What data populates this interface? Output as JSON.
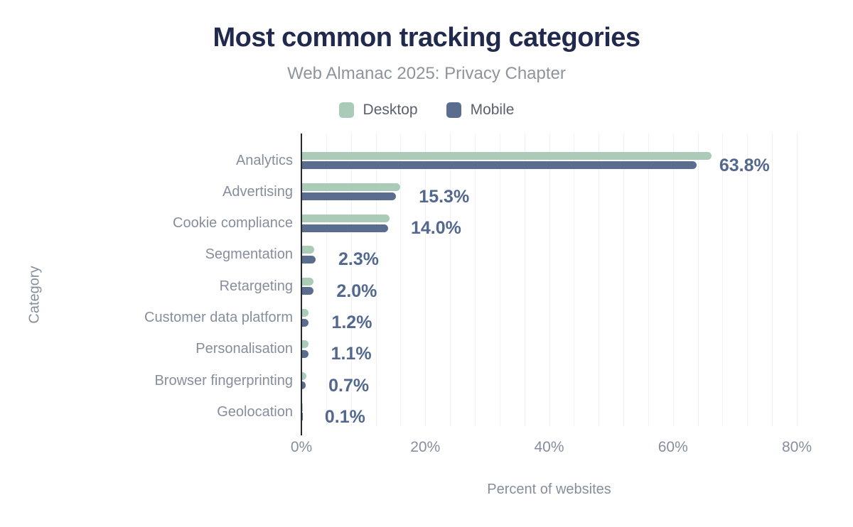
{
  "header": {
    "title": "Most common tracking categories",
    "subtitle": "Web Almanac 2025: Privacy Chapter"
  },
  "legend": [
    {
      "label": "Desktop",
      "color": "#a9cbb8"
    },
    {
      "label": "Mobile",
      "color": "#5b6d8f"
    }
  ],
  "chart_data": {
    "type": "bar",
    "orientation": "horizontal",
    "title": "Most common tracking categories",
    "subtitle": "Web Almanac 2025: Privacy Chapter",
    "categories": [
      "Analytics",
      "Advertising",
      "Cookie compliance",
      "Segmentation",
      "Retargeting",
      "Customer data platform",
      "Personalisation",
      "Browser fingerprinting",
      "Geolocation"
    ],
    "series": [
      {
        "name": "Desktop",
        "color": "#a9cbb8",
        "values": [
          66.2,
          16.0,
          14.2,
          2.1,
          1.9,
          1.1,
          1.2,
          0.8,
          0.1
        ]
      },
      {
        "name": "Mobile",
        "color": "#5b6d8f",
        "values": [
          63.8,
          15.3,
          14.0,
          2.3,
          2.0,
          1.2,
          1.1,
          0.7,
          0.1
        ]
      }
    ],
    "value_labels": [
      "63.8%",
      "15.3%",
      "14.0%",
      "2.3%",
      "2.0%",
      "1.2%",
      "1.1%",
      "0.7%",
      "0.1%"
    ],
    "value_labels_series": "Mobile",
    "xlabel": "Percent of websites",
    "ylabel": "Category",
    "xlim": [
      0,
      80
    ],
    "x_ticks": [
      {
        "value": 0,
        "label": "0%"
      },
      {
        "value": 20,
        "label": "20%"
      },
      {
        "value": 40,
        "label": "40%"
      },
      {
        "value": 60,
        "label": "60%"
      },
      {
        "value": 80,
        "label": "80%"
      }
    ],
    "grid": {
      "vertical": true,
      "minor_step_pct": 4
    },
    "legend_position": "top",
    "colors": {
      "background": "#ffffff",
      "title": "#212a4d",
      "subtitle": "#8e949c",
      "legend_text": "#59616e",
      "category_label": "#868e9c",
      "tick_label": "#868e9c",
      "axis_title": "#868e9c",
      "value_label": "#53688f",
      "axis_line": "#26292f",
      "gridline": "#f1f1f4"
    }
  }
}
